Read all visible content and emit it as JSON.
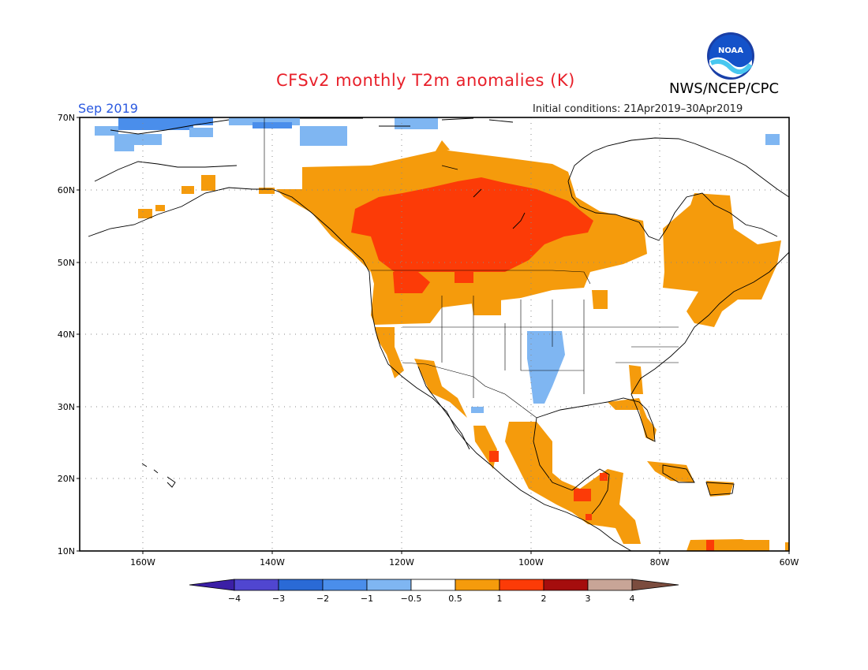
{
  "header": {
    "title": "CFSv2 monthly T2m anomalies (K)",
    "organization": "NWS/NCEP/CPC",
    "logo_text": "NOAA",
    "valid_month": "Sep 2019",
    "initial_conditions": "Initial conditions: 21Apr2019–30Apr2019"
  },
  "axes": {
    "lat_labels": [
      "70N",
      "60N",
      "50N",
      "40N",
      "30N",
      "20N",
      "10N"
    ],
    "lon_labels": [
      "160W",
      "140W",
      "120W",
      "100W",
      "80W",
      "60W"
    ]
  },
  "colorbar": {
    "labels": [
      "−4",
      "−3",
      "−2",
      "−1",
      "−0.5",
      "0.5",
      "1",
      "2",
      "3",
      "4"
    ],
    "colors": [
      "#3b1fa6",
      "#5046d0",
      "#2a6ad6",
      "#4a8eeb",
      "#7fb6f2",
      "#ffffff",
      "#f59b0c",
      "#fc3b07",
      "#a50d0d",
      "#c8a597",
      "#7b4c3e"
    ]
  },
  "colors": {
    "title": "#e8202a",
    "month": "#2a59e0",
    "land_outline": "#000000",
    "grid": "#888888"
  }
}
